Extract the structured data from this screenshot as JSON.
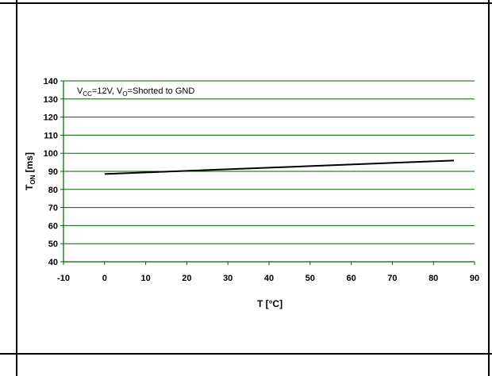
{
  "chart_data": {
    "type": "line",
    "xlabel": "T [°C]",
    "ylabel": {
      "main": "T",
      "sub": "ON",
      "unit": " [ms]"
    },
    "annotation": {
      "a": "V",
      "a_sub": "CC",
      "b": "=12V, V",
      "b_sub": "O",
      "c": "=Shorted to GND"
    },
    "xlim": [
      -10,
      90
    ],
    "ylim": [
      40,
      140
    ],
    "x_ticks": [
      -10,
      0,
      10,
      20,
      30,
      40,
      50,
      60,
      70,
      80,
      90
    ],
    "y_ticks": [
      40,
      50,
      60,
      70,
      80,
      90,
      100,
      110,
      120,
      130,
      140
    ],
    "grid": true,
    "series": [
      {
        "x": [
          0,
          85
        ],
        "y": [
          88.5,
          96
        ],
        "color": "#000000"
      }
    ],
    "colors": {
      "axis": "#006000",
      "grid": "#006000",
      "line": "#000000"
    }
  }
}
